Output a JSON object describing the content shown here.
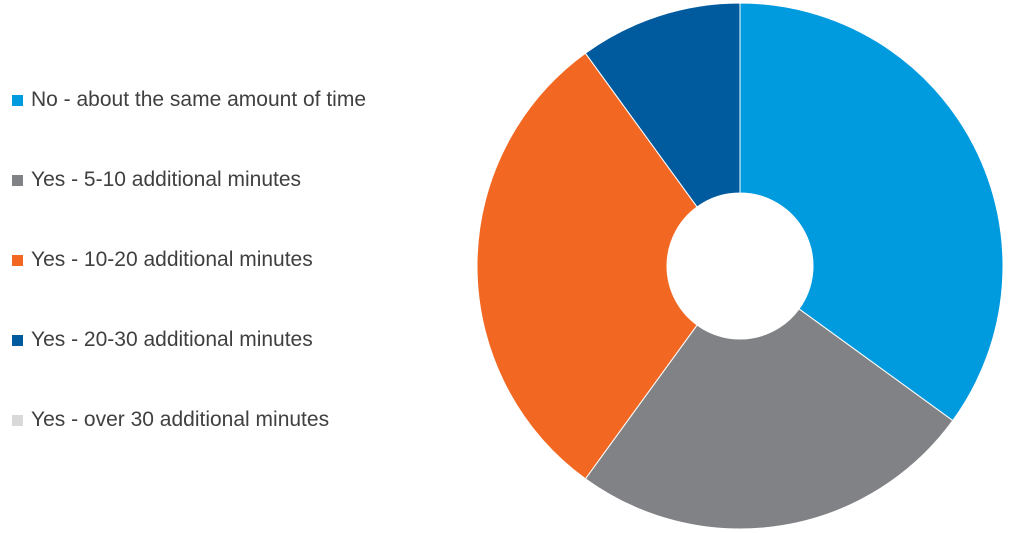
{
  "chart_data": {
    "type": "pie",
    "variant": "donut",
    "title": "",
    "legend_position": "left",
    "categories": [
      "No - about the same amount of time",
      "Yes - 5-10 additional minutes",
      "Yes - 10-20 additional minutes",
      "Yes - 20-30 additional minutes",
      "Yes - over 30 additional minutes"
    ],
    "values": [
      35,
      25,
      30,
      10,
      0
    ],
    "colors": [
      "#009ADF",
      "#808285",
      "#F26722",
      "#005A9E",
      "#D9D9D9"
    ]
  }
}
